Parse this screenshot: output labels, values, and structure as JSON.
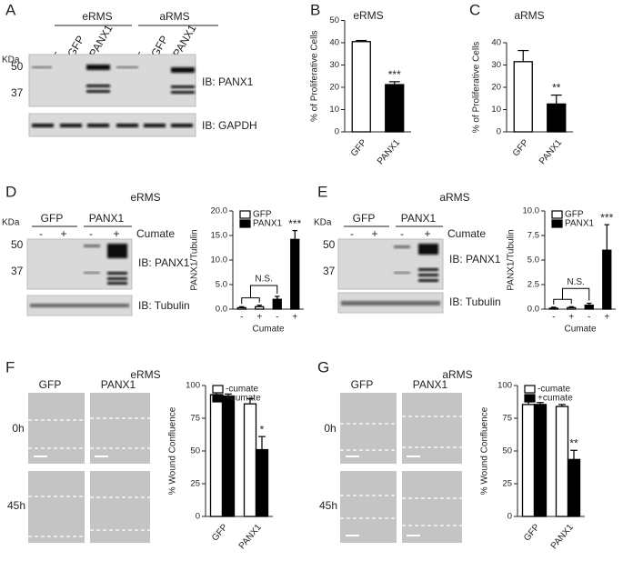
{
  "panels": {
    "A": {
      "letter": "A",
      "groups": [
        "eRMS",
        "aRMS"
      ],
      "lanes": [
        "-",
        "GFP",
        "PANX1",
        "-",
        "GFP",
        "PANX1"
      ],
      "unit": "KDa",
      "markers": [
        "50",
        "37"
      ],
      "blots": [
        "IB: PANX1",
        "IB: GAPDH"
      ]
    },
    "D": {
      "letter": "D",
      "title": "eRMS",
      "groups": [
        "GFP",
        "PANX1"
      ],
      "treatment": "Cumate",
      "lanes": [
        "-",
        "+",
        "-",
        "+"
      ],
      "unit": "KDa",
      "markers": [
        "50",
        "37"
      ],
      "blots": [
        "IB: PANX1",
        "IB: Tubulin"
      ]
    },
    "E": {
      "letter": "E",
      "title": "aRMS",
      "groups": [
        "GFP",
        "PANX1"
      ],
      "treatment": "Cumate",
      "lanes": [
        "-",
        "+",
        "-",
        "+"
      ],
      "unit": "KDa",
      "markers": [
        "50",
        "37"
      ],
      "blots": [
        "IB: PANX1",
        "IB: Tubulin"
      ]
    },
    "F": {
      "letter": "F",
      "title": "eRMS",
      "columns": [
        "GFP",
        "PANX1"
      ],
      "rows": [
        "0h",
        "45h"
      ]
    },
    "G": {
      "letter": "G",
      "title": "aRMS",
      "columns": [
        "GFP",
        "PANX1"
      ],
      "rows": [
        "0h",
        "45h"
      ]
    }
  },
  "chart_data": [
    {
      "type": "bar",
      "panel": "B",
      "title": "eRMS",
      "ylabel": "% of Proliferative Cells",
      "categories": [
        "GFP",
        "PANX1"
      ],
      "values": [
        40.5,
        21.2
      ],
      "errors": [
        0.5,
        1.3
      ],
      "colors": [
        "#ffffff",
        "#000000"
      ],
      "annotations": [
        null,
        "***"
      ],
      "ylim": [
        0,
        50
      ],
      "yticks": [
        0,
        10,
        20,
        30,
        40,
        50
      ]
    },
    {
      "type": "bar",
      "panel": "C",
      "title": "aRMS",
      "ylabel": "% of Proliferative Cells",
      "categories": [
        "GFP",
        "PANX1"
      ],
      "values": [
        31.5,
        12.5
      ],
      "errors": [
        5,
        4
      ],
      "colors": [
        "#ffffff",
        "#000000"
      ],
      "annotations": [
        null,
        "**"
      ],
      "ylim": [
        0,
        40
      ],
      "yticks": [
        0,
        10,
        20,
        30,
        40
      ]
    },
    {
      "type": "bar",
      "ylabel": "PANX1/Tubulin",
      "xlabel": "Cumate",
      "categories": [
        "-",
        "+",
        "-",
        "+"
      ],
      "series": [
        {
          "name": "GFP",
          "color": "#ffffff",
          "values": [
            0.3,
            0.5,
            null,
            null
          ],
          "errors": [
            0.2,
            0.3,
            null,
            null
          ]
        },
        {
          "name": "PANX1",
          "color": "#000000",
          "values": [
            null,
            null,
            2.0,
            14.2
          ],
          "errors": [
            null,
            null,
            0.6,
            1.8
          ],
          "annotations": [
            null,
            null,
            null,
            "***"
          ]
        }
      ],
      "bracket_label": "N.S.",
      "ylim": [
        0,
        20
      ],
      "yticks": [
        {
          "value": 0,
          "label": "0.0"
        },
        {
          "value": 5,
          "label": "5.0"
        },
        {
          "value": 10,
          "label": "10.0"
        },
        {
          "value": 15,
          "label": "15.0"
        },
        {
          "value": 20,
          "label": "20.0"
        }
      ]
    },
    {
      "type": "bar",
      "ylabel": "PANX1/Tubulin",
      "xlabel": "Cumate",
      "categories": [
        "-",
        "+",
        "-",
        "+"
      ],
      "series": [
        {
          "name": "GFP",
          "color": "#ffffff",
          "values": [
            0.1,
            0.15,
            null,
            null
          ],
          "errors": [
            0.1,
            0.1,
            null,
            null
          ]
        },
        {
          "name": "PANX1",
          "color": "#000000",
          "values": [
            null,
            null,
            0.4,
            6.0
          ],
          "errors": [
            null,
            null,
            0.2,
            2.6
          ],
          "annotations": [
            null,
            null,
            null,
            "***"
          ]
        }
      ],
      "bracket_label": "N.S.",
      "ylim": [
        0,
        10
      ],
      "yticks": [
        {
          "value": 0,
          "label": "0.0"
        },
        2.5,
        {
          "value": 5,
          "label": "5.0"
        },
        7.5,
        {
          "value": 10,
          "label": "10.0"
        }
      ]
    },
    {
      "type": "bar",
      "ylabel": "% Wound Confluence",
      "categories": [
        "GFP",
        "PANX1"
      ],
      "series": [
        {
          "name": "-cumate",
          "color": "#ffffff",
          "values": [
            93,
            86
          ],
          "errors": [
            1.5,
            4
          ]
        },
        {
          "name": "+cumate",
          "color": "#000000",
          "values": [
            92,
            51
          ],
          "errors": [
            1.5,
            10
          ],
          "annotations": [
            null,
            "*"
          ]
        }
      ],
      "ylim": [
        0,
        100
      ],
      "yticks": [
        0,
        25,
        50,
        75,
        100
      ]
    },
    {
      "type": "bar",
      "ylabel": "% Wound Confluence",
      "categories": [
        "GFP",
        "PANX1"
      ],
      "series": [
        {
          "name": "-cumate",
          "color": "#ffffff",
          "values": [
            85.5,
            84
          ],
          "errors": [
            2,
            1.5
          ]
        },
        {
          "name": "+cumate",
          "color": "#000000",
          "values": [
            85.5,
            43.5
          ],
          "errors": [
            1.5,
            7
          ],
          "annotations": [
            null,
            "**"
          ]
        }
      ],
      "ylim": [
        0,
        100
      ],
      "yticks": [
        0,
        25,
        50,
        75,
        100
      ]
    }
  ]
}
